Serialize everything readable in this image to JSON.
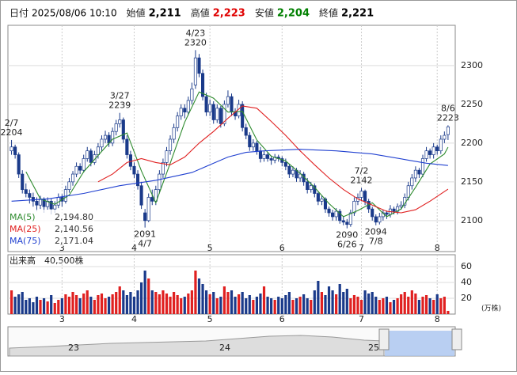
{
  "header": {
    "items": [
      {
        "label": "日付",
        "value": "2025/08/06 10:10",
        "color": "#000000"
      },
      {
        "label": "始値",
        "value": "2,211",
        "color": "#000000"
      },
      {
        "label": "高値",
        "value": "2,223",
        "color": "#e00000"
      },
      {
        "label": "安値",
        "value": "2,204",
        "color": "#008000"
      },
      {
        "label": "終値",
        "value": "2,221",
        "color": "#000000"
      }
    ]
  },
  "chart_data": [
    {
      "type": "candlestick",
      "up_color": "#ffffff",
      "down_color": "#1a3a8a",
      "edge_color": "#1a3a8a",
      "candles": [
        [
          2190,
          2204,
          2185,
          2195
        ],
        [
          2195,
          2198,
          2180,
          2185
        ],
        [
          2185,
          2188,
          2155,
          2160
        ],
        [
          2160,
          2165,
          2135,
          2140
        ],
        [
          2140,
          2148,
          2130,
          2135
        ],
        [
          2135,
          2140,
          2122,
          2130
        ],
        [
          2130,
          2136,
          2118,
          2125
        ],
        [
          2125,
          2130,
          2112,
          2120
        ],
        [
          2120,
          2132,
          2115,
          2128
        ],
        [
          2128,
          2130,
          2110,
          2118
        ],
        [
          2118,
          2130,
          2114,
          2125
        ],
        [
          2125,
          2128,
          2108,
          2115
        ],
        [
          2115,
          2125,
          2110,
          2120
        ],
        [
          2120,
          2135,
          2116,
          2130
        ],
        [
          2130,
          2134,
          2118,
          2125
        ],
        [
          2125,
          2145,
          2122,
          2140
        ],
        [
          2140,
          2155,
          2136,
          2150
        ],
        [
          2150,
          2164,
          2145,
          2160
        ],
        [
          2160,
          2175,
          2156,
          2170
        ],
        [
          2170,
          2174,
          2160,
          2165
        ],
        [
          2165,
          2185,
          2162,
          2180
        ],
        [
          2180,
          2195,
          2176,
          2190
        ],
        [
          2190,
          2193,
          2170,
          2175
        ],
        [
          2175,
          2190,
          2172,
          2185
        ],
        [
          2185,
          2200,
          2180,
          2195
        ],
        [
          2195,
          2210,
          2190,
          2205
        ],
        [
          2205,
          2216,
          2200,
          2210
        ],
        [
          2210,
          2214,
          2195,
          2200
        ],
        [
          2200,
          2220,
          2196,
          2215
        ],
        [
          2215,
          2230,
          2210,
          2225
        ],
        [
          2225,
          2239,
          2220,
          2230
        ],
        [
          2230,
          2233,
          2200,
          2205
        ],
        [
          2205,
          2210,
          2180,
          2185
        ],
        [
          2185,
          2190,
          2165,
          2170
        ],
        [
          2170,
          2175,
          2155,
          2160
        ],
        [
          2160,
          2165,
          2140,
          2145
        ],
        [
          2145,
          2150,
          2115,
          2120
        ],
        [
          2110,
          2115,
          2091,
          2100
        ],
        [
          2100,
          2135,
          2098,
          2130
        ],
        [
          2130,
          2140,
          2120,
          2125
        ],
        [
          2125,
          2145,
          2120,
          2140
        ],
        [
          2140,
          2165,
          2135,
          2160
        ],
        [
          2160,
          2180,
          2155,
          2175
        ],
        [
          2175,
          2195,
          2170,
          2190
        ],
        [
          2190,
          2210,
          2185,
          2205
        ],
        [
          2205,
          2225,
          2200,
          2220
        ],
        [
          2220,
          2240,
          2215,
          2235
        ],
        [
          2235,
          2250,
          2230,
          2245
        ],
        [
          2245,
          2250,
          2232,
          2240
        ],
        [
          2240,
          2260,
          2236,
          2255
        ],
        [
          2255,
          2278,
          2250,
          2270
        ],
        [
          2275,
          2320,
          2270,
          2310
        ],
        [
          2310,
          2315,
          2285,
          2290
        ],
        [
          2290,
          2295,
          2255,
          2260
        ],
        [
          2260,
          2265,
          2235,
          2240
        ],
        [
          2240,
          2256,
          2235,
          2250
        ],
        [
          2250,
          2254,
          2225,
          2230
        ],
        [
          2230,
          2250,
          2226,
          2245
        ],
        [
          2245,
          2248,
          2220,
          2225
        ],
        [
          2225,
          2255,
          2222,
          2250
        ],
        [
          2250,
          2268,
          2246,
          2260
        ],
        [
          2260,
          2264,
          2235,
          2240
        ],
        [
          2240,
          2245,
          2230,
          2235
        ],
        [
          2235,
          2256,
          2232,
          2250
        ],
        [
          2250,
          2254,
          2215,
          2220
        ],
        [
          2220,
          2225,
          2205,
          2210
        ],
        [
          2210,
          2214,
          2190,
          2195
        ],
        [
          2195,
          2205,
          2190,
          2200
        ],
        [
          2200,
          2203,
          2185,
          2190
        ],
        [
          2190,
          2195,
          2175,
          2180
        ],
        [
          2180,
          2190,
          2176,
          2185
        ],
        [
          2185,
          2188,
          2176,
          2180
        ],
        [
          2180,
          2184,
          2172,
          2178
        ],
        [
          2178,
          2186,
          2174,
          2182
        ],
        [
          2182,
          2185,
          2176,
          2180
        ],
        [
          2180,
          2183,
          2170,
          2175
        ],
        [
          2175,
          2180,
          2165,
          2170
        ],
        [
          2170,
          2173,
          2155,
          2160
        ],
        [
          2160,
          2170,
          2156,
          2165
        ],
        [
          2165,
          2168,
          2150,
          2155
        ],
        [
          2155,
          2165,
          2150,
          2160
        ],
        [
          2160,
          2163,
          2145,
          2150
        ],
        [
          2150,
          2155,
          2135,
          2140
        ],
        [
          2140,
          2150,
          2136,
          2145
        ],
        [
          2145,
          2148,
          2130,
          2135
        ],
        [
          2135,
          2138,
          2120,
          2125
        ],
        [
          2125,
          2132,
          2120,
          2128
        ],
        [
          2128,
          2130,
          2110,
          2115
        ],
        [
          2115,
          2118,
          2105,
          2110
        ],
        [
          2110,
          2114,
          2100,
          2105
        ],
        [
          2105,
          2116,
          2100,
          2112
        ],
        [
          2112,
          2115,
          2096,
          2100
        ],
        [
          2100,
          2106,
          2094,
          2098
        ],
        [
          2098,
          2102,
          2090,
          2095
        ],
        [
          2095,
          2114,
          2092,
          2110
        ],
        [
          2110,
          2130,
          2106,
          2125
        ],
        [
          2125,
          2135,
          2120,
          2130
        ],
        [
          2130,
          2142,
          2125,
          2138
        ],
        [
          2138,
          2140,
          2120,
          2125
        ],
        [
          2125,
          2128,
          2110,
          2115
        ],
        [
          2115,
          2118,
          2100,
          2105
        ],
        [
          2105,
          2108,
          2094,
          2098
        ],
        [
          2098,
          2110,
          2095,
          2105
        ],
        [
          2105,
          2114,
          2100,
          2110
        ],
        [
          2110,
          2113,
          2102,
          2108
        ],
        [
          2108,
          2120,
          2104,
          2115
        ],
        [
          2115,
          2118,
          2108,
          2112
        ],
        [
          2112,
          2122,
          2108,
          2118
        ],
        [
          2118,
          2125,
          2114,
          2120
        ],
        [
          2120,
          2135,
          2116,
          2130
        ],
        [
          2130,
          2150,
          2126,
          2145
        ],
        [
          2145,
          2160,
          2140,
          2155
        ],
        [
          2155,
          2170,
          2150,
          2165
        ],
        [
          2165,
          2168,
          2155,
          2160
        ],
        [
          2160,
          2185,
          2156,
          2180
        ],
        [
          2180,
          2195,
          2176,
          2190
        ],
        [
          2190,
          2193,
          2180,
          2185
        ],
        [
          2185,
          2200,
          2180,
          2195
        ],
        [
          2195,
          2198,
          2185,
          2190
        ],
        [
          2190,
          2210,
          2186,
          2205
        ],
        [
          2205,
          2215,
          2200,
          2210
        ],
        [
          2211,
          2223,
          2204,
          2221
        ]
      ],
      "series": [
        {
          "name": "MA(5)",
          "color": "#2e8b2e",
          "legend_value": {
            "value": 2194.8,
            "label": "2,194.80"
          },
          "x": [
            4,
            8,
            12,
            16,
            20,
            24,
            28,
            32,
            36,
            40,
            44,
            48,
            52,
            56,
            60,
            64,
            68,
            72,
            76,
            80,
            84,
            88,
            92,
            96,
            100,
            104,
            108,
            112,
            116,
            120,
            121
          ],
          "values": [
            2163,
            2128,
            2121,
            2133,
            2163,
            2184,
            2205,
            2213,
            2164,
            2123,
            2174,
            2227,
            2266,
            2258,
            2240,
            2241,
            2204,
            2183,
            2177,
            2161,
            2143,
            2122,
            2105,
            2113,
            2123,
            2105,
            2115,
            2143,
            2173,
            2186,
            2194.8
          ]
        },
        {
          "name": "MA(25)",
          "color": "#e02020",
          "legend_value": {
            "value": 2140.56,
            "label": "2,140.56"
          },
          "x": [
            24,
            28,
            32,
            36,
            40,
            44,
            48,
            52,
            56,
            60,
            64,
            68,
            72,
            76,
            80,
            84,
            88,
            92,
            96,
            100,
            104,
            108,
            112,
            116,
            121
          ],
          "values": [
            2150,
            2160,
            2175,
            2180,
            2175,
            2172,
            2182,
            2200,
            2215,
            2232,
            2248,
            2245,
            2228,
            2210,
            2190,
            2172,
            2155,
            2140,
            2128,
            2120,
            2112,
            2110,
            2114,
            2125,
            2140.56
          ]
        },
        {
          "name": "MA(75)",
          "color": "#2040d0",
          "legend_value": {
            "value": 2171.04,
            "label": "2,171.04"
          },
          "x": [
            0,
            10,
            20,
            30,
            40,
            50,
            55,
            60,
            65,
            70,
            80,
            90,
            100,
            110,
            115,
            121
          ],
          "values": [
            2125,
            2128,
            2135,
            2145,
            2152,
            2162,
            2172,
            2182,
            2188,
            2190,
            2192,
            2190,
            2186,
            2178,
            2174,
            2171.04
          ]
        }
      ],
      "annotations": [
        {
          "x": 0,
          "value": 2204,
          "date": "2/7",
          "side": "above"
        },
        {
          "x": 30,
          "value": 2239,
          "date": "3/27",
          "side": "above"
        },
        {
          "x": 37,
          "value": 2091,
          "date": "4/7",
          "side": "below"
        },
        {
          "x": 51,
          "value": 2320,
          "date": "4/23",
          "side": "above"
        },
        {
          "x": 93,
          "value": 2090,
          "date": "6/26",
          "side": "below"
        },
        {
          "x": 97,
          "value": 2142,
          "date": "7/2",
          "side": "above"
        },
        {
          "x": 101,
          "value": 2094,
          "date": "7/8",
          "side": "below"
        },
        {
          "x": 121,
          "value": 2223,
          "date": "8/6",
          "side": "above"
        }
      ],
      "xlim": [
        -1,
        123
      ],
      "xticks": [
        {
          "value": 14,
          "label": "3"
        },
        {
          "value": 34,
          "label": "4"
        },
        {
          "value": 55,
          "label": "5"
        },
        {
          "value": 75,
          "label": "6"
        },
        {
          "value": 97,
          "label": "7"
        },
        {
          "value": 118,
          "label": "8"
        }
      ],
      "ylim": [
        2060,
        2352
      ],
      "yticks": [
        2100,
        2150,
        2200,
        2250,
        2300
      ],
      "grid": true
    },
    {
      "type": "bar",
      "title": "出来高",
      "latest": "40,500株",
      "unit": "(万株)",
      "up_color": "#e02020",
      "down_color": "#1a3a8a",
      "values": [
        30,
        22,
        25,
        28,
        18,
        20,
        15,
        22,
        18,
        20,
        16,
        24,
        14,
        18,
        20,
        25,
        22,
        28,
        24,
        20,
        26,
        30,
        22,
        18,
        24,
        26,
        20,
        22,
        25,
        28,
        35,
        30,
        24,
        28,
        22,
        30,
        40,
        55,
        45,
        30,
        28,
        25,
        30,
        26,
        22,
        28,
        24,
        20,
        22,
        26,
        30,
        55,
        45,
        38,
        30,
        25,
        28,
        20,
        22,
        35,
        28,
        30,
        22,
        25,
        28,
        20,
        24,
        18,
        22,
        26,
        35,
        22,
        20,
        18,
        22,
        20,
        24,
        28,
        18,
        20,
        22,
        25,
        20,
        18,
        30,
        42,
        28,
        24,
        35,
        30,
        25,
        38,
        28,
        32,
        20,
        24,
        22,
        18,
        30,
        26,
        28,
        22,
        18,
        20,
        22,
        15,
        18,
        20,
        25,
        28,
        22,
        30,
        26,
        18,
        22,
        24,
        20,
        18,
        25,
        20,
        22,
        4.05
      ],
      "ylim": [
        0,
        75
      ],
      "yticks": [
        20,
        40,
        60
      ],
      "grid": true
    }
  ],
  "navigator": {
    "labels": [
      "23",
      "24",
      "25"
    ]
  }
}
